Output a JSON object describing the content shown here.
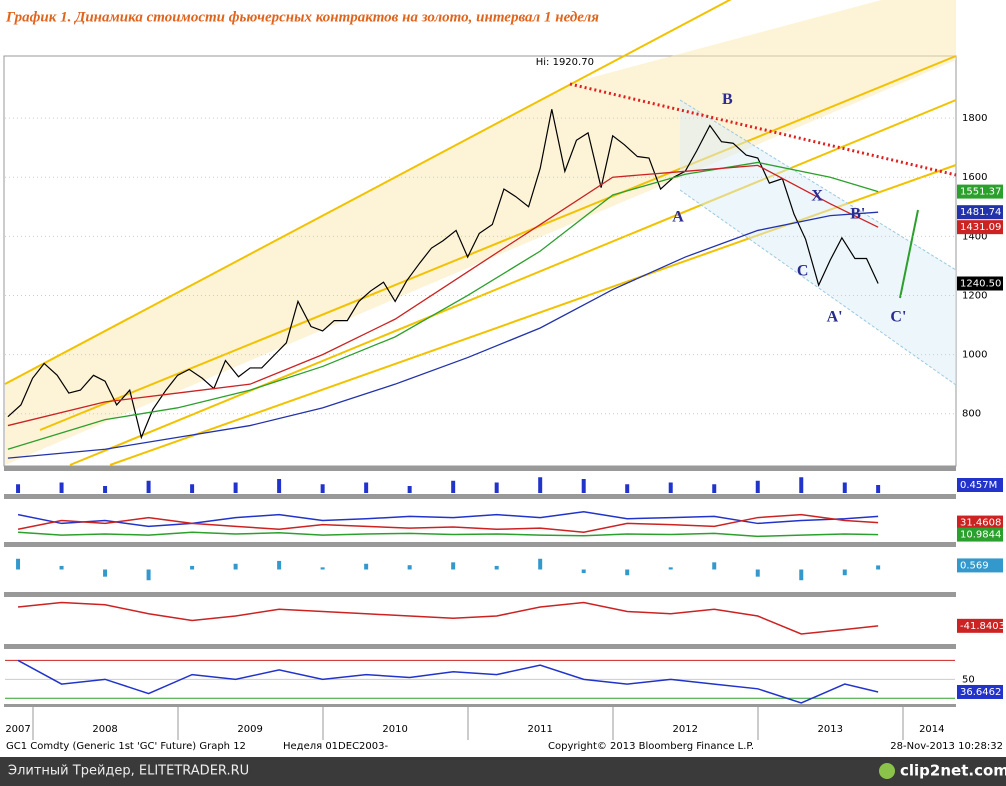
{
  "chart_data": {
    "type": "line",
    "title": "График 1.   Динамика стоимости фьючерсных контрактов на золото, интервал 1 неделя",
    "xlim": [
      2007.81,
      2014.36
    ],
    "xticks": [
      {
        "value": 2007.9,
        "label": "2007"
      },
      {
        "value": 2008.5,
        "label": "2008"
      },
      {
        "value": 2009.5,
        "label": "2009"
      },
      {
        "value": 2010.5,
        "label": "2010"
      },
      {
        "value": 2011.5,
        "label": "2011"
      },
      {
        "value": 2012.5,
        "label": "2012"
      },
      {
        "value": 2013.5,
        "label": "2013"
      },
      {
        "value": 2014.2,
        "label": "2014"
      }
    ],
    "ylim": [
      630,
      2010
    ],
    "yticks": [
      800,
      1000,
      1200,
      1400,
      1600,
      1800
    ],
    "grid": true,
    "series": [
      {
        "color": "#000000",
        "last_label": "1240.50",
        "x": [
          2007.83,
          2007.92,
          2008.0,
          2008.08,
          2008.17,
          2008.25,
          2008.33,
          2008.42,
          2008.5,
          2008.58,
          2008.67,
          2008.75,
          2008.83,
          2008.92,
          2009.0,
          2009.08,
          2009.17,
          2009.25,
          2009.33,
          2009.42,
          2009.5,
          2009.58,
          2009.67,
          2009.75,
          2009.83,
          2009.92,
          2010.0,
          2010.08,
          2010.17,
          2010.25,
          2010.33,
          2010.42,
          2010.5,
          2010.58,
          2010.67,
          2010.75,
          2010.83,
          2010.92,
          2011.0,
          2011.08,
          2011.17,
          2011.25,
          2011.33,
          2011.42,
          2011.5,
          2011.58,
          2011.67,
          2011.75,
          2011.83,
          2011.92,
          2012.0,
          2012.08,
          2012.17,
          2012.25,
          2012.33,
          2012.42,
          2012.5,
          2012.58,
          2012.67,
          2012.75,
          2012.83,
          2012.92,
          2013.0,
          2013.08,
          2013.17,
          2013.25,
          2013.33,
          2013.42,
          2013.5,
          2013.58,
          2013.67,
          2013.75,
          2013.83
        ],
        "values": [
          790,
          830,
          920,
          970,
          930,
          870,
          880,
          930,
          910,
          830,
          880,
          720,
          815,
          880,
          930,
          950,
          920,
          885,
          980,
          925,
          955,
          955,
          1000,
          1040,
          1180,
          1095,
          1080,
          1115,
          1115,
          1180,
          1215,
          1245,
          1180,
          1250,
          1310,
          1360,
          1385,
          1420,
          1330,
          1410,
          1440,
          1560,
          1535,
          1500,
          1630,
          1830,
          1620,
          1725,
          1750,
          1565,
          1740,
          1710,
          1670,
          1665,
          1560,
          1600,
          1620,
          1690,
          1775,
          1720,
          1715,
          1675,
          1665,
          1580,
          1595,
          1475,
          1390,
          1235,
          1320,
          1395,
          1325,
          1325,
          1240.5
        ]
      },
      {
        "color": "#2ca02c",
        "x": [
          2007.83,
          2008.5,
          2009.0,
          2009.5,
          2010.0,
          2010.5,
          2011.0,
          2011.5,
          2012.0,
          2012.5,
          2013.0,
          2013.5,
          2013.83
        ],
        "values": [
          680,
          780,
          820,
          880,
          960,
          1060,
          1200,
          1350,
          1540,
          1610,
          1650,
          1600,
          1551.37
        ]
      },
      {
        "color": "#cc2222",
        "x": [
          2007.83,
          2008.5,
          2009.0,
          2009.5,
          2010.0,
          2010.5,
          2011.0,
          2011.5,
          2012.0,
          2012.5,
          2013.0,
          2013.5,
          2013.83
        ],
        "values": [
          760,
          840,
          870,
          900,
          1000,
          1120,
          1280,
          1440,
          1600,
          1620,
          1640,
          1510,
          1431.09
        ]
      },
      {
        "color": "#2233aa",
        "x": [
          2007.83,
          2008.5,
          2009.0,
          2009.5,
          2010.0,
          2010.5,
          2011.0,
          2011.5,
          2012.0,
          2012.5,
          2013.0,
          2013.5,
          2013.83
        ],
        "values": [
          650,
          680,
          720,
          760,
          820,
          900,
          990,
          1090,
          1220,
          1330,
          1420,
          1470,
          1481.74
        ]
      }
    ],
    "annotations": [
      {
        "text": "Hi: 1920.70",
        "x": 2011.67,
        "y": 1990
      },
      {
        "text": "A",
        "x": 2012.45,
        "y": 1462
      },
      {
        "text": "B",
        "x": 2012.79,
        "y": 1860
      },
      {
        "text": "X",
        "x": 2013.41,
        "y": 1533
      },
      {
        "text": "C",
        "x": 2013.31,
        "y": 1280
      },
      {
        "text": "A'",
        "x": 2013.53,
        "y": 1124
      },
      {
        "text": "B'",
        "x": 2013.69,
        "y": 1472
      },
      {
        "text": "C'",
        "x": 2013.97,
        "y": 1124
      }
    ],
    "indicator_x": [
      2007.9,
      2008.2,
      2008.5,
      2008.8,
      2009.1,
      2009.4,
      2009.7,
      2010.0,
      2010.3,
      2010.6,
      2010.9,
      2011.2,
      2011.5,
      2011.8,
      2012.1,
      2012.4,
      2012.7,
      2013.0,
      2013.3,
      2013.6,
      2013.83
    ],
    "indicators": [
      {
        "type": "bar",
        "ylim": [
          0,
          1.2
        ],
        "series": [
          {
            "color": "#2233cc",
            "last_label": "0.457M",
            "values": [
              0.5,
              0.6,
              0.4,
              0.7,
              0.5,
              0.6,
              0.8,
              0.5,
              0.6,
              0.4,
              0.7,
              0.6,
              0.9,
              0.8,
              0.5,
              0.6,
              0.5,
              0.7,
              0.9,
              0.6,
              0.457
            ]
          }
        ]
      },
      {
        "type": "line",
        "ylim": [
          0,
          70
        ],
        "series": [
          {
            "color": "#2233cc",
            "values": [
              45,
              30,
              35,
              25,
              30,
              40,
              45,
              35,
              38,
              42,
              40,
              45,
              40,
              50,
              38,
              40,
              42,
              30,
              35,
              38,
              42
            ]
          },
          {
            "color": "#cc2222",
            "values": [
              20,
              35,
              30,
              40,
              30,
              25,
              20,
              28,
              25,
              22,
              24,
              20,
              22,
              15,
              30,
              28,
              25,
              40,
              45,
              35,
              31.4608
            ]
          },
          {
            "color": "#2ca02c",
            "values": [
              15,
              10,
              12,
              10,
              15,
              12,
              14,
              10,
              12,
              13,
              11,
              12,
              10,
              9,
              12,
              11,
              13,
              8,
              10,
              12,
              10.9844
            ]
          }
        ]
      },
      {
        "type": "bar",
        "ylim": [
          -3,
          3
        ],
        "series": [
          {
            "color": "#3399cc",
            "values": [
              1.5,
              0.5,
              -1,
              -1.5,
              0.5,
              0.8,
              1.2,
              0.3,
              0.8,
              0.6,
              1,
              0.5,
              1.5,
              -0.5,
              -0.8,
              0.3,
              1,
              -1,
              -1.5,
              -0.8,
              0.569
            ]
          }
        ]
      },
      {
        "type": "line",
        "ylim": [
          -80,
          20
        ],
        "series": [
          {
            "color": "#cc2222",
            "values": [
              0,
              10,
              5,
              -15,
              -30,
              -20,
              -5,
              -10,
              -15,
              -20,
              -25,
              -20,
              0,
              10,
              -10,
              -15,
              -5,
              -20,
              -60,
              -50,
              -41.8403
            ]
          }
        ]
      },
      {
        "type": "line",
        "ylim": [
          25,
          81
        ],
        "yticks": [
          50
        ],
        "hlines": [
          {
            "value": 70,
            "color": "#cc2222"
          },
          {
            "value": 30,
            "color": "#2ca02c"
          }
        ],
        "series": [
          {
            "color": "#2233cc",
            "values": [
              70,
              45,
              50,
              35,
              55,
              50,
              60,
              50,
              55,
              52,
              58,
              55,
              65,
              50,
              45,
              50,
              45,
              40,
              25,
              45,
              36.6462
            ]
          }
        ]
      }
    ],
    "footer": {
      "left": "GC1 Comdty (Generic 1st 'GC' Future) Graph 12",
      "period": "Неделя 01DEC2003-",
      "copyright": "Copyright© 2013 Bloomberg Finance L.P.",
      "timestamp": "28-Nov-2013 10:28:32"
    },
    "watermark": {
      "left": "Элитный Трейдер, ELITETRADER.RU",
      "right": "clip2net.com"
    }
  }
}
